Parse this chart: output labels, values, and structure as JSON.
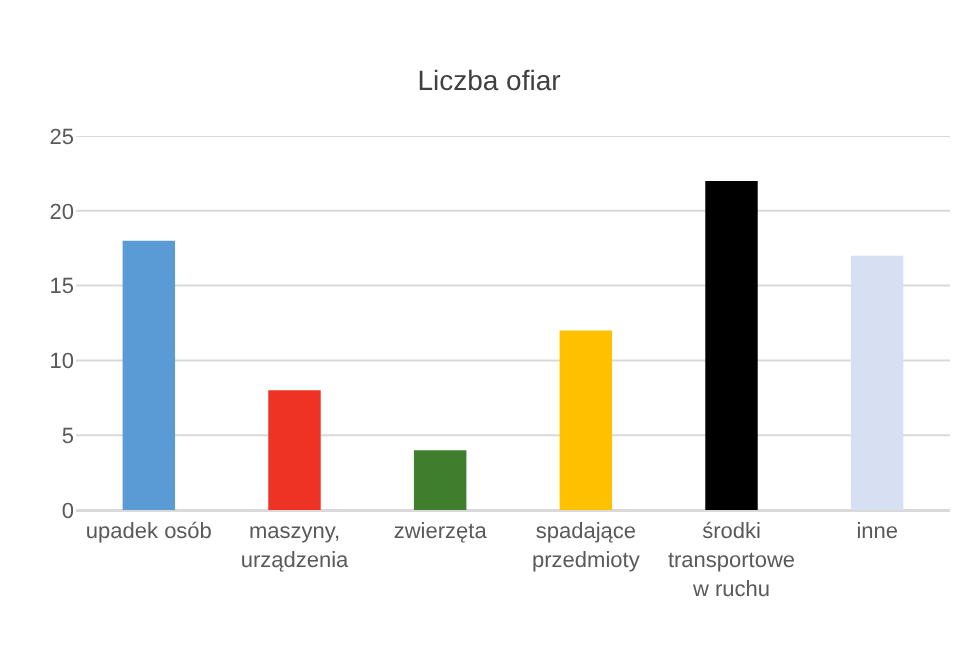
{
  "chart_data": {
    "type": "bar",
    "title": "Liczba ofiar",
    "categories": [
      "upadek osób",
      "maszyny,\nurządzenia",
      "zwierzęta",
      "spadające\nprzedmioty",
      "środki\ntransportowe\nw ruchu",
      "inne"
    ],
    "values": [
      18,
      8,
      4,
      12,
      22,
      17
    ],
    "colors": [
      "#5b9bd5",
      "#ee3224",
      "#3e7e2d",
      "#ffc000",
      "#000000",
      "#d6e0f2"
    ],
    "ylim": [
      0,
      25
    ],
    "yticks": [
      0,
      5,
      10,
      15,
      20,
      25
    ],
    "grid": "y"
  }
}
